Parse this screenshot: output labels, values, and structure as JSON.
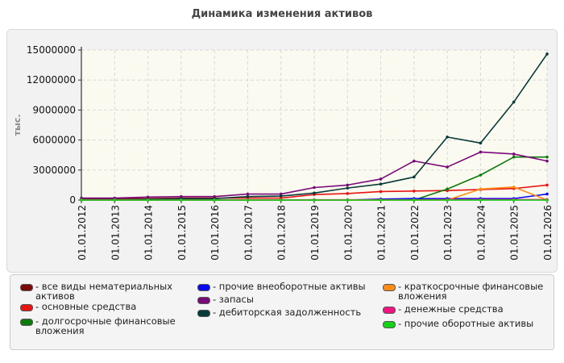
{
  "chart_data": {
    "type": "line",
    "title": "Динамика изменения активов",
    "ylabel": "тыс.",
    "xlabel": "",
    "ylim": [
      0,
      15000000
    ],
    "yticks": [
      "15000000",
      "12000000",
      "9000000",
      "6000000",
      "3000000",
      "0"
    ],
    "ytick_values": [
      15000000,
      12000000,
      9000000,
      6000000,
      3000000,
      0
    ],
    "grid": true,
    "legend_position": "bottom",
    "categories": [
      "01.01.2012",
      "01.01.2013",
      "01.01.2014",
      "01.01.2015",
      "01.01.2016",
      "01.01.2017",
      "01.01.2018",
      "01.01.2019",
      "01.01.2020",
      "01.01.2021",
      "01.01.2022",
      "01.01.2023",
      "01.01.2024",
      "01.01.2025",
      "01.01.2026"
    ],
    "series": [
      {
        "name": "- все виды нематериальных\nактивов",
        "color": "#7a0a0a",
        "values": [
          20000,
          20000,
          20000,
          20000,
          20000,
          20000,
          20000,
          20000,
          20000,
          20000,
          20000,
          20000,
          20000,
          20000,
          20000
        ]
      },
      {
        "name": "- основные средства",
        "color": "#e81414",
        "values": [
          150000,
          150000,
          150000,
          200000,
          200000,
          200000,
          200000,
          550000,
          650000,
          850000,
          900000,
          950000,
          1050000,
          1150000,
          1500000
        ]
      },
      {
        "name": "- долгосрочные финансовые\nвложения",
        "color": "#0c7a0c",
        "values": [
          0,
          0,
          0,
          0,
          0,
          0,
          0,
          0,
          0,
          0,
          0,
          1100000,
          2500000,
          4300000,
          4300000
        ]
      },
      {
        "name": "- прочие внеоборотные активы",
        "color": "#0a0af0",
        "values": [
          0,
          0,
          0,
          0,
          0,
          0,
          0,
          0,
          0,
          100000,
          150000,
          150000,
          150000,
          150000,
          600000
        ]
      },
      {
        "name": "- запасы",
        "color": "#7a0a7a",
        "values": [
          200000,
          200000,
          300000,
          350000,
          350000,
          600000,
          600000,
          1250000,
          1500000,
          2100000,
          3900000,
          3300000,
          4800000,
          4600000,
          3900000
        ]
      },
      {
        "name": "- дебиторская задолженность",
        "color": "#083a3a",
        "values": [
          50000,
          50000,
          100000,
          150000,
          150000,
          350000,
          400000,
          700000,
          1200000,
          1600000,
          2300000,
          6300000,
          5700000,
          9800000,
          14600000
        ]
      },
      {
        "name": "- краткосрочные финансовые\nвложения",
        "color": "#ff8c14",
        "values": [
          0,
          0,
          0,
          0,
          0,
          0,
          0,
          0,
          0,
          0,
          0,
          0,
          1100000,
          1300000,
          0
        ]
      },
      {
        "name": "- денежные средства",
        "color": "#f01480",
        "values": [
          20000,
          20000,
          20000,
          20000,
          20000,
          20000,
          20000,
          30000,
          30000,
          30000,
          30000,
          50000,
          50000,
          50000,
          50000
        ]
      },
      {
        "name": "- прочие оборотные активы",
        "color": "#14d214",
        "values": [
          0,
          0,
          0,
          0,
          0,
          0,
          0,
          0,
          0,
          0,
          0,
          0,
          0,
          0,
          0
        ]
      }
    ]
  }
}
